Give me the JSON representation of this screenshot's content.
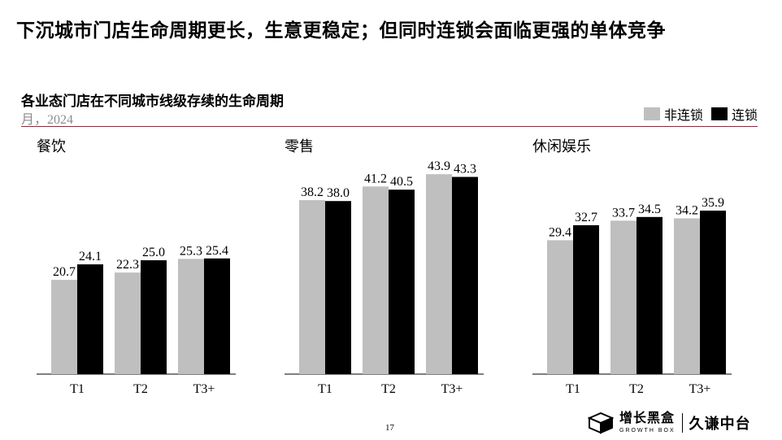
{
  "headline": "下沉城市门店生命周期更长，生意更稳定；但同时连锁会面临更强的单体竞争",
  "chart_title": "各业态门店在不同城市线级存续的生命周期",
  "chart_unit": "月，2024",
  "legend": {
    "position": "top-right",
    "non_chain": "非连锁",
    "chain": "连锁"
  },
  "colors": {
    "non_chain": "#bfbfbf",
    "chain": "#000000",
    "accent_rule": "#c8102e"
  },
  "chart_data": [
    {
      "type": "bar",
      "title": "餐饮",
      "categories": [
        "T1",
        "T2",
        "T3+"
      ],
      "series": [
        {
          "name": "非连锁",
          "values": [
            20.7,
            22.3,
            25.3
          ]
        },
        {
          "name": "连锁",
          "values": [
            24.1,
            25.0,
            25.4
          ]
        }
      ],
      "ylim": [
        0,
        50
      ],
      "grid": false
    },
    {
      "type": "bar",
      "title": "零售",
      "categories": [
        "T1",
        "T2",
        "T3+"
      ],
      "series": [
        {
          "name": "非连锁",
          "values": [
            38.2,
            41.2,
            43.9
          ]
        },
        {
          "name": "连锁",
          "values": [
            38.0,
            40.5,
            43.3
          ]
        }
      ],
      "ylim": [
        0,
        50
      ],
      "grid": false
    },
    {
      "type": "bar",
      "title": "休闲娱乐",
      "categories": [
        "T1",
        "T2",
        "T3+"
      ],
      "series": [
        {
          "name": "非连锁",
          "values": [
            29.4,
            33.7,
            34.2
          ]
        },
        {
          "name": "连锁",
          "values": [
            32.7,
            34.5,
            35.9
          ]
        }
      ],
      "ylim": [
        0,
        50
      ],
      "grid": false
    }
  ],
  "page_number": "17",
  "logo": {
    "name_cn": "增长黑盒",
    "name_en": "GROWTH BOX",
    "partner": "久谦中台"
  }
}
